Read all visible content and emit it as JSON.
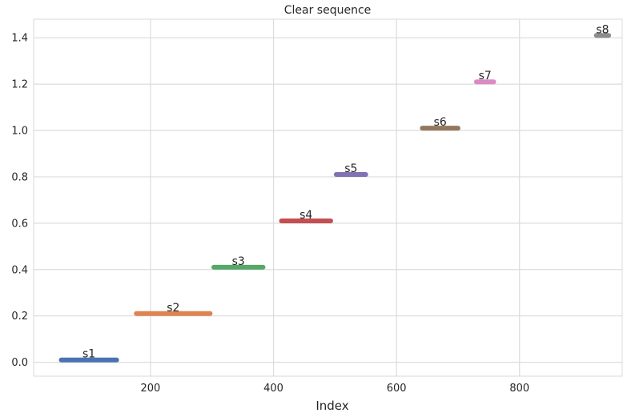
{
  "chart_data": {
    "type": "line",
    "title": "Clear sequence",
    "xlabel": "Index",
    "ylabel": "",
    "xlim": [
      10,
      967
    ],
    "ylim": [
      -0.06,
      1.48
    ],
    "xticks": [
      200,
      400,
      600,
      800
    ],
    "yticks": [
      0.0,
      0.2,
      0.4,
      0.6,
      0.8,
      1.0,
      1.2,
      1.4
    ],
    "ytick_labels": [
      "0.0",
      "0.2",
      "0.4",
      "0.6",
      "0.8",
      "1.0",
      "1.2",
      "1.4"
    ],
    "grid": true,
    "series": [
      {
        "name": "s1",
        "color": "#4c72b0",
        "x": [
          55,
          145
        ],
        "y": [
          0.01,
          0.01
        ]
      },
      {
        "name": "s2",
        "color": "#dd8452",
        "x": [
          177,
          297
        ],
        "y": [
          0.21,
          0.21
        ]
      },
      {
        "name": "s3",
        "color": "#55a868",
        "x": [
          303,
          383
        ],
        "y": [
          0.41,
          0.41
        ]
      },
      {
        "name": "s4",
        "color": "#c44e52",
        "x": [
          413,
          493
        ],
        "y": [
          0.61,
          0.61
        ]
      },
      {
        "name": "s5",
        "color": "#8172b3",
        "x": [
          502,
          550
        ],
        "y": [
          0.81,
          0.81
        ]
      },
      {
        "name": "s6",
        "color": "#937860",
        "x": [
          642,
          700
        ],
        "y": [
          1.01,
          1.01
        ]
      },
      {
        "name": "s7",
        "color": "#da8bc3",
        "x": [
          730,
          758
        ],
        "y": [
          1.21,
          1.21
        ]
      },
      {
        "name": "s8",
        "color": "#8c8c8c",
        "x": [
          925,
          945
        ],
        "y": [
          1.41,
          1.41
        ]
      }
    ]
  }
}
